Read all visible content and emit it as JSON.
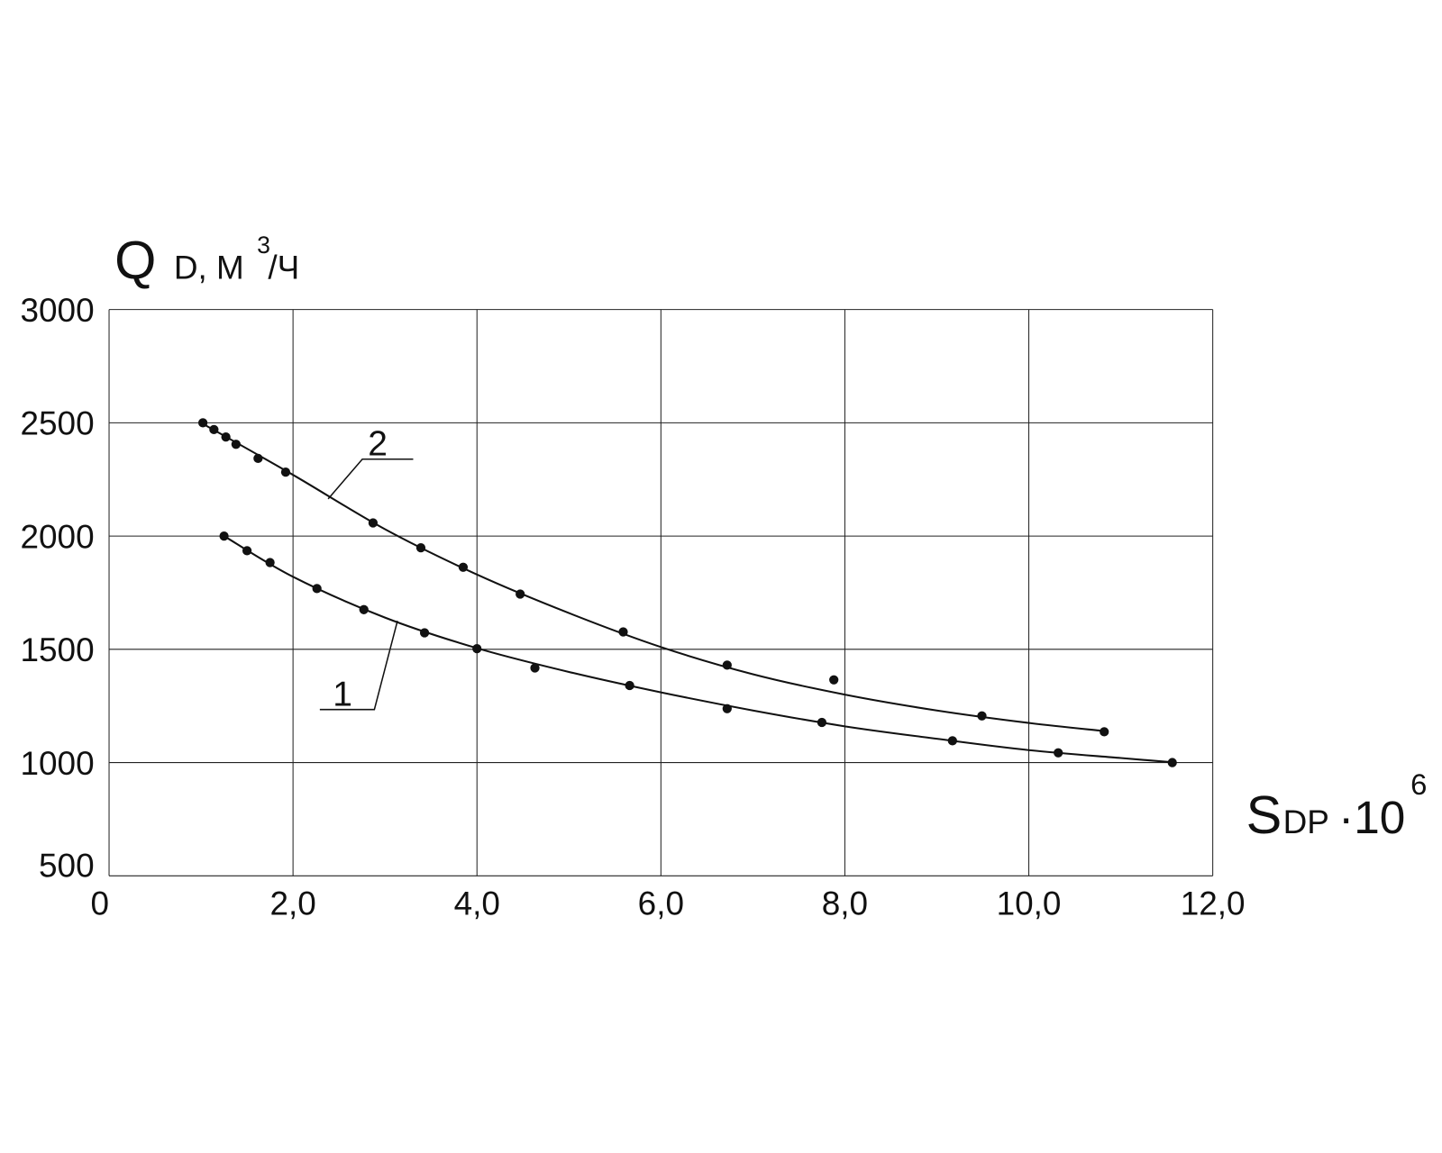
{
  "chart_data": {
    "type": "scatter",
    "y_label": {
      "main": "Q",
      "sub": "D, М",
      "sup": "3",
      "tail": "/Ч"
    },
    "x_label": {
      "main": "S",
      "sub": "DP",
      "mult": "·10",
      "sup": "6"
    },
    "xlim": [
      0,
      12
    ],
    "ylim": [
      500,
      3000
    ],
    "xticks": [
      0,
      {
        "value": 2,
        "label": "2,0"
      },
      {
        "value": 4,
        "label": "4,0"
      },
      {
        "value": 6,
        "label": "6,0"
      },
      {
        "value": 8,
        "label": "8,0"
      },
      {
        "value": 10,
        "label": "10,0"
      },
      {
        "value": 12,
        "label": "12,0"
      }
    ],
    "yticks": [
      500,
      1000,
      1500,
      2000,
      2500,
      3000
    ],
    "grid": true,
    "color": "#111111",
    "series": [
      {
        "name": "1",
        "color": "#111111",
        "x": [
          1.25,
          1.5,
          1.75,
          2.26,
          2.77,
          3.43,
          4.0,
          4.63,
          5.66,
          6.72,
          7.75,
          9.17,
          10.32,
          11.56
        ],
        "values": [
          2000,
          1935,
          1883,
          1768,
          1675,
          1573,
          1503,
          1418,
          1340,
          1238,
          1177,
          1096,
          1043,
          1000
        ],
        "fit_x": [
          1.25,
          2.0,
          3.0,
          4.0,
          5.0,
          6.0,
          7.0,
          8.0,
          9.0,
          10.0,
          11.0,
          11.6
        ],
        "fit_values": [
          2000,
          1820,
          1640,
          1505,
          1400,
          1310,
          1230,
          1160,
          1105,
          1055,
          1020,
          1000
        ]
      },
      {
        "name": "2",
        "color": "#111111",
        "x": [
          1.02,
          1.14,
          1.27,
          1.38,
          1.62,
          1.92,
          2.87,
          3.39,
          3.85,
          4.47,
          5.59,
          6.72,
          7.88,
          9.49,
          10.82
        ],
        "values": [
          2500,
          2470,
          2437,
          2405,
          2343,
          2282,
          2058,
          1948,
          1862,
          1744,
          1577,
          1430,
          1365,
          1206,
          1136
        ],
        "fit_x": [
          1.0,
          2.0,
          3.0,
          4.0,
          5.0,
          6.0,
          7.0,
          8.0,
          9.0,
          10.0,
          10.8
        ],
        "fit_values": [
          2500,
          2270,
          2030,
          1830,
          1660,
          1510,
          1390,
          1300,
          1230,
          1175,
          1140
        ]
      }
    ]
  }
}
